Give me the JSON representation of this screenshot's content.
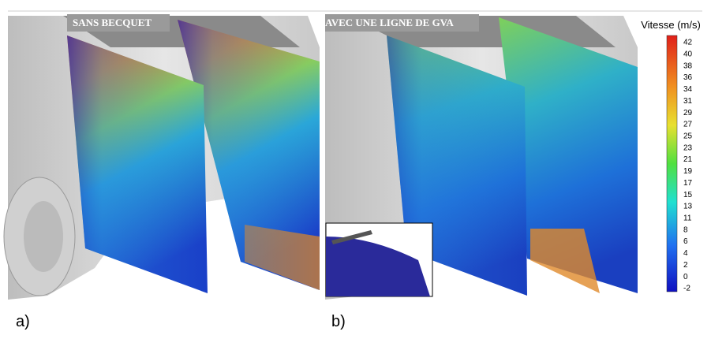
{
  "panels": [
    {
      "title": "SANS BECQUET",
      "label": "a)"
    },
    {
      "title": "AVEC UNE LIGNE DE GVA",
      "label": "b)"
    }
  ],
  "colorbar": {
    "title": "Vitesse (m/s)",
    "ticks": [
      42,
      40,
      38,
      36,
      34,
      31,
      29,
      27,
      25,
      23,
      21,
      19,
      17,
      15,
      13,
      11,
      8,
      6,
      4,
      2,
      0,
      -2
    ]
  }
}
